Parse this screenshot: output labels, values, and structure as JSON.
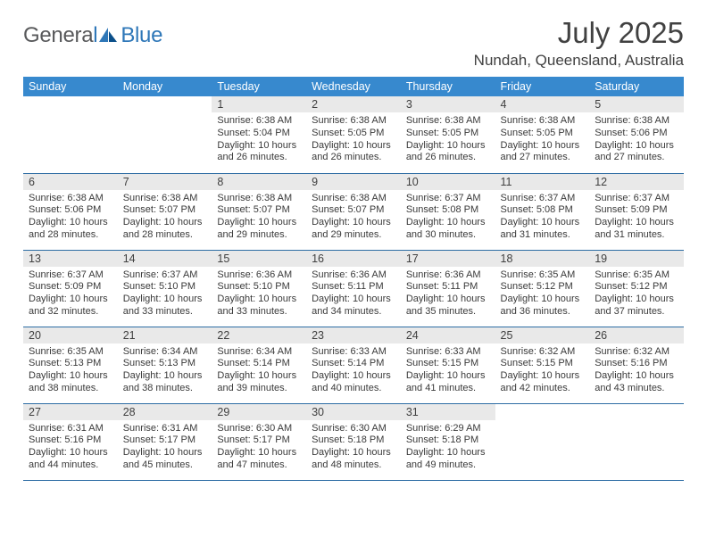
{
  "brand": {
    "general": "Genera",
    "l": "l",
    "blue": "Blue"
  },
  "title": {
    "month": "July 2025",
    "location": "Nundah, Queensland, Australia"
  },
  "headers": [
    "Sunday",
    "Monday",
    "Tuesday",
    "Wednesday",
    "Thursday",
    "Friday",
    "Saturday"
  ],
  "colors": {
    "header_bg": "#3789ce",
    "daynum_bg": "#e9e9e9",
    "rule": "#2e6da4",
    "text": "#3a3a3a",
    "logo_gray": "#58595b",
    "logo_blue": "#2e77b8"
  },
  "weeks": [
    [
      {
        "n": "",
        "sr": "",
        "ss": "",
        "dl1": "",
        "dl2": ""
      },
      {
        "n": "",
        "sr": "",
        "ss": "",
        "dl1": "",
        "dl2": ""
      },
      {
        "n": "1",
        "sr": "Sunrise: 6:38 AM",
        "ss": "Sunset: 5:04 PM",
        "dl1": "Daylight: 10 hours",
        "dl2": "and 26 minutes."
      },
      {
        "n": "2",
        "sr": "Sunrise: 6:38 AM",
        "ss": "Sunset: 5:05 PM",
        "dl1": "Daylight: 10 hours",
        "dl2": "and 26 minutes."
      },
      {
        "n": "3",
        "sr": "Sunrise: 6:38 AM",
        "ss": "Sunset: 5:05 PM",
        "dl1": "Daylight: 10 hours",
        "dl2": "and 26 minutes."
      },
      {
        "n": "4",
        "sr": "Sunrise: 6:38 AM",
        "ss": "Sunset: 5:05 PM",
        "dl1": "Daylight: 10 hours",
        "dl2": "and 27 minutes."
      },
      {
        "n": "5",
        "sr": "Sunrise: 6:38 AM",
        "ss": "Sunset: 5:06 PM",
        "dl1": "Daylight: 10 hours",
        "dl2": "and 27 minutes."
      }
    ],
    [
      {
        "n": "6",
        "sr": "Sunrise: 6:38 AM",
        "ss": "Sunset: 5:06 PM",
        "dl1": "Daylight: 10 hours",
        "dl2": "and 28 minutes."
      },
      {
        "n": "7",
        "sr": "Sunrise: 6:38 AM",
        "ss": "Sunset: 5:07 PM",
        "dl1": "Daylight: 10 hours",
        "dl2": "and 28 minutes."
      },
      {
        "n": "8",
        "sr": "Sunrise: 6:38 AM",
        "ss": "Sunset: 5:07 PM",
        "dl1": "Daylight: 10 hours",
        "dl2": "and 29 minutes."
      },
      {
        "n": "9",
        "sr": "Sunrise: 6:38 AM",
        "ss": "Sunset: 5:07 PM",
        "dl1": "Daylight: 10 hours",
        "dl2": "and 29 minutes."
      },
      {
        "n": "10",
        "sr": "Sunrise: 6:37 AM",
        "ss": "Sunset: 5:08 PM",
        "dl1": "Daylight: 10 hours",
        "dl2": "and 30 minutes."
      },
      {
        "n": "11",
        "sr": "Sunrise: 6:37 AM",
        "ss": "Sunset: 5:08 PM",
        "dl1": "Daylight: 10 hours",
        "dl2": "and 31 minutes."
      },
      {
        "n": "12",
        "sr": "Sunrise: 6:37 AM",
        "ss": "Sunset: 5:09 PM",
        "dl1": "Daylight: 10 hours",
        "dl2": "and 31 minutes."
      }
    ],
    [
      {
        "n": "13",
        "sr": "Sunrise: 6:37 AM",
        "ss": "Sunset: 5:09 PM",
        "dl1": "Daylight: 10 hours",
        "dl2": "and 32 minutes."
      },
      {
        "n": "14",
        "sr": "Sunrise: 6:37 AM",
        "ss": "Sunset: 5:10 PM",
        "dl1": "Daylight: 10 hours",
        "dl2": "and 33 minutes."
      },
      {
        "n": "15",
        "sr": "Sunrise: 6:36 AM",
        "ss": "Sunset: 5:10 PM",
        "dl1": "Daylight: 10 hours",
        "dl2": "and 33 minutes."
      },
      {
        "n": "16",
        "sr": "Sunrise: 6:36 AM",
        "ss": "Sunset: 5:11 PM",
        "dl1": "Daylight: 10 hours",
        "dl2": "and 34 minutes."
      },
      {
        "n": "17",
        "sr": "Sunrise: 6:36 AM",
        "ss": "Sunset: 5:11 PM",
        "dl1": "Daylight: 10 hours",
        "dl2": "and 35 minutes."
      },
      {
        "n": "18",
        "sr": "Sunrise: 6:35 AM",
        "ss": "Sunset: 5:12 PM",
        "dl1": "Daylight: 10 hours",
        "dl2": "and 36 minutes."
      },
      {
        "n": "19",
        "sr": "Sunrise: 6:35 AM",
        "ss": "Sunset: 5:12 PM",
        "dl1": "Daylight: 10 hours",
        "dl2": "and 37 minutes."
      }
    ],
    [
      {
        "n": "20",
        "sr": "Sunrise: 6:35 AM",
        "ss": "Sunset: 5:13 PM",
        "dl1": "Daylight: 10 hours",
        "dl2": "and 38 minutes."
      },
      {
        "n": "21",
        "sr": "Sunrise: 6:34 AM",
        "ss": "Sunset: 5:13 PM",
        "dl1": "Daylight: 10 hours",
        "dl2": "and 38 minutes."
      },
      {
        "n": "22",
        "sr": "Sunrise: 6:34 AM",
        "ss": "Sunset: 5:14 PM",
        "dl1": "Daylight: 10 hours",
        "dl2": "and 39 minutes."
      },
      {
        "n": "23",
        "sr": "Sunrise: 6:33 AM",
        "ss": "Sunset: 5:14 PM",
        "dl1": "Daylight: 10 hours",
        "dl2": "and 40 minutes."
      },
      {
        "n": "24",
        "sr": "Sunrise: 6:33 AM",
        "ss": "Sunset: 5:15 PM",
        "dl1": "Daylight: 10 hours",
        "dl2": "and 41 minutes."
      },
      {
        "n": "25",
        "sr": "Sunrise: 6:32 AM",
        "ss": "Sunset: 5:15 PM",
        "dl1": "Daylight: 10 hours",
        "dl2": "and 42 minutes."
      },
      {
        "n": "26",
        "sr": "Sunrise: 6:32 AM",
        "ss": "Sunset: 5:16 PM",
        "dl1": "Daylight: 10 hours",
        "dl2": "and 43 minutes."
      }
    ],
    [
      {
        "n": "27",
        "sr": "Sunrise: 6:31 AM",
        "ss": "Sunset: 5:16 PM",
        "dl1": "Daylight: 10 hours",
        "dl2": "and 44 minutes."
      },
      {
        "n": "28",
        "sr": "Sunrise: 6:31 AM",
        "ss": "Sunset: 5:17 PM",
        "dl1": "Daylight: 10 hours",
        "dl2": "and 45 minutes."
      },
      {
        "n": "29",
        "sr": "Sunrise: 6:30 AM",
        "ss": "Sunset: 5:17 PM",
        "dl1": "Daylight: 10 hours",
        "dl2": "and 47 minutes."
      },
      {
        "n": "30",
        "sr": "Sunrise: 6:30 AM",
        "ss": "Sunset: 5:18 PM",
        "dl1": "Daylight: 10 hours",
        "dl2": "and 48 minutes."
      },
      {
        "n": "31",
        "sr": "Sunrise: 6:29 AM",
        "ss": "Sunset: 5:18 PM",
        "dl1": "Daylight: 10 hours",
        "dl2": "and 49 minutes."
      },
      {
        "n": "",
        "sr": "",
        "ss": "",
        "dl1": "",
        "dl2": ""
      },
      {
        "n": "",
        "sr": "",
        "ss": "",
        "dl1": "",
        "dl2": ""
      }
    ]
  ]
}
